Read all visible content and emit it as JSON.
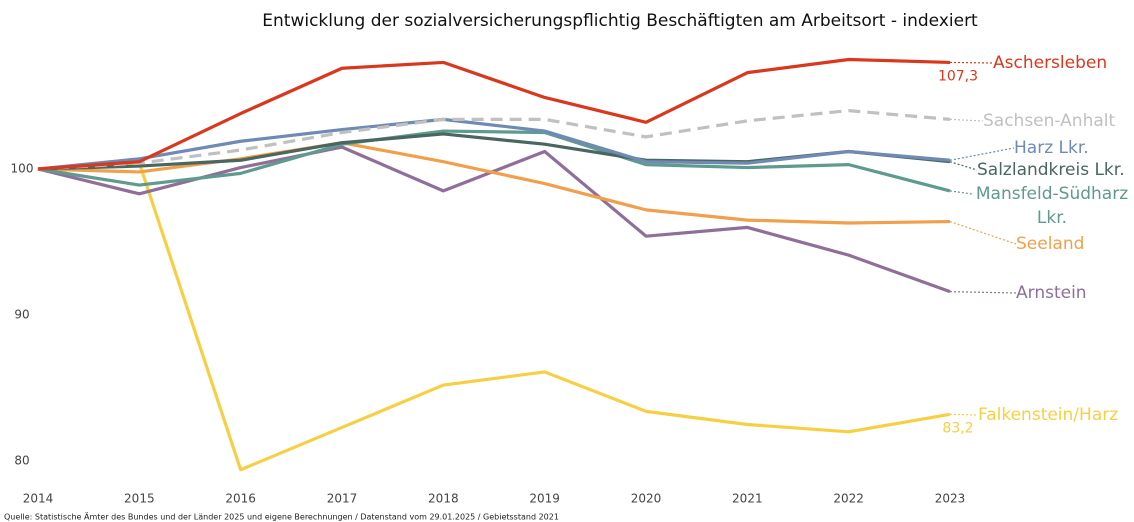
{
  "chart_data": {
    "type": "line",
    "title": "Entwicklung der sozialversicherungspflichtig Beschäftigten am Arbeitsort - indexiert",
    "source": "Quelle: Statistische Ämter des Bundes und der Länder 2025 und eigene Berechnungen / Datenstand vom 29.01.2025 / Gebietsstand 2021",
    "x": [
      2014,
      2015,
      2016,
      2017,
      2018,
      2019,
      2020,
      2021,
      2022,
      2023
    ],
    "xlim": [
      2014,
      2023
    ],
    "xticks": [
      2014,
      2015,
      2016,
      2017,
      2018,
      2019,
      2020,
      2021,
      2022,
      2023
    ],
    "ylim": [
      78,
      109
    ],
    "yticks": [
      80,
      90,
      100
    ],
    "grid": false,
    "series": [
      {
        "name": "Falkenstein/Harz",
        "color": "#f7cf45",
        "values": [
          100,
          100.4,
          79.4,
          82.3,
          85.2,
          86.1,
          83.4,
          82.5,
          82.0,
          83.2
        ],
        "value_labels": [
          null,
          null,
          null,
          null,
          null,
          null,
          null,
          null,
          null,
          "83,2"
        ]
      },
      {
        "name": "Arnstein",
        "color": "#8f6f99",
        "values": [
          100,
          98.3,
          100.1,
          101.5,
          98.5,
          101.2,
          95.4,
          96.0,
          94.1,
          91.6
        ]
      },
      {
        "name": "Seeland",
        "color": "#f0a04b",
        "values": [
          100,
          99.8,
          100.7,
          101.8,
          100.5,
          99.0,
          97.2,
          96.5,
          96.3,
          96.4
        ]
      },
      {
        "name": "Mansfeld-Südharz Lkr.",
        "color": "#5f9a8e",
        "values": [
          100,
          98.9,
          99.7,
          101.7,
          102.6,
          102.5,
          100.3,
          100.1,
          100.3,
          98.5
        ]
      },
      {
        "name": "Salzlandkreis Lkr.",
        "color": "#4a6660",
        "values": [
          100,
          100.2,
          100.6,
          101.8,
          102.4,
          101.7,
          100.6,
          100.5,
          101.2,
          100.5
        ]
      },
      {
        "name": "Harz Lkr.",
        "color": "#6e8ab5",
        "values": [
          100,
          100.7,
          101.9,
          102.7,
          103.4,
          102.6,
          100.5,
          100.4,
          101.2,
          100.6
        ]
      },
      {
        "name": "Sachsen-Anhalt",
        "color": "#c0c0c0",
        "dashed": true,
        "values": [
          100,
          100.4,
          101.3,
          102.5,
          103.4,
          103.4,
          102.2,
          103.3,
          104.0,
          103.4
        ]
      },
      {
        "name": "Aschersleben",
        "color": "#d9381e",
        "values": [
          100,
          100.5,
          103.8,
          106.9,
          107.3,
          104.9,
          103.2,
          106.6,
          107.5,
          107.3
        ],
        "value_labels": [
          null,
          null,
          null,
          null,
          null,
          null,
          null,
          null,
          null,
          "107,3"
        ]
      }
    ]
  }
}
